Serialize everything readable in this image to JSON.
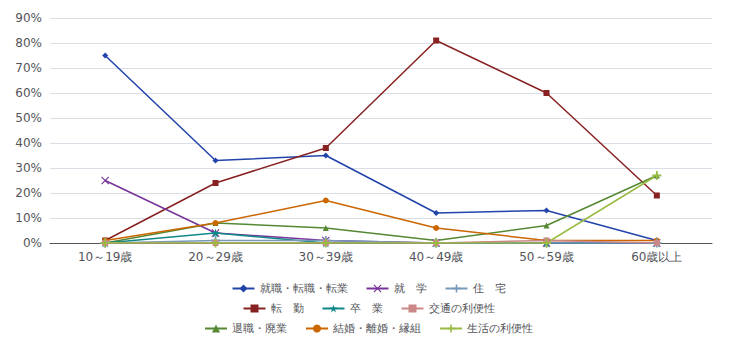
{
  "chart_data": {
    "type": "line",
    "categories": [
      "10～19歳",
      "20～29歳",
      "30～39歳",
      "40～49歳",
      "50～59歳",
      "60歳以上"
    ],
    "series": [
      {
        "name": "就職・転職・転業",
        "color": "#2244AA",
        "marker": "diamond",
        "values": [
          75,
          33,
          35,
          12,
          13,
          1
        ]
      },
      {
        "name": "転　勤",
        "color": "#882222",
        "marker": "square",
        "values": [
          1,
          24,
          38,
          81,
          60,
          19
        ]
      },
      {
        "name": "退職・廃業",
        "color": "#558833",
        "marker": "triangle",
        "values": [
          0,
          8,
          6,
          1,
          7,
          27
        ]
      },
      {
        "name": "就　学",
        "color": "#773399",
        "marker": "x",
        "values": [
          25,
          4,
          1,
          0,
          0,
          0
        ]
      },
      {
        "name": "卒　業",
        "color": "#118888",
        "marker": "star",
        "values": [
          0,
          4,
          0,
          0,
          0,
          0
        ]
      },
      {
        "name": "結婚・離婚・縁組",
        "color": "#CC6600",
        "marker": "circle",
        "values": [
          1,
          8,
          17,
          6,
          1,
          1
        ]
      },
      {
        "name": "住　宅",
        "color": "#7799BB",
        "marker": "plus",
        "values": [
          0,
          1,
          1,
          0,
          0,
          0
        ]
      },
      {
        "name": "交通の利便性",
        "color": "#CC8888",
        "marker": "square",
        "values": [
          0,
          0,
          0,
          0,
          1,
          0
        ]
      },
      {
        "name": "生活の利便性",
        "color": "#99BB44",
        "marker": "plus",
        "values": [
          0,
          0,
          0,
          0,
          0,
          27
        ]
      }
    ],
    "ylim": [
      0,
      90
    ],
    "yticks": [
      {
        "value": 0,
        "label": "0%"
      },
      {
        "value": 10,
        "label": "10%"
      },
      {
        "value": 20,
        "label": "20%"
      },
      {
        "value": 30,
        "label": "30%"
      },
      {
        "value": 40,
        "label": "40%"
      },
      {
        "value": 50,
        "label": "50%"
      },
      {
        "value": 60,
        "label": "60%"
      },
      {
        "value": 70,
        "label": "70%"
      },
      {
        "value": 80,
        "label": "80%"
      },
      {
        "value": 90,
        "label": "90%"
      }
    ],
    "grid": true,
    "legend": "bottom"
  }
}
